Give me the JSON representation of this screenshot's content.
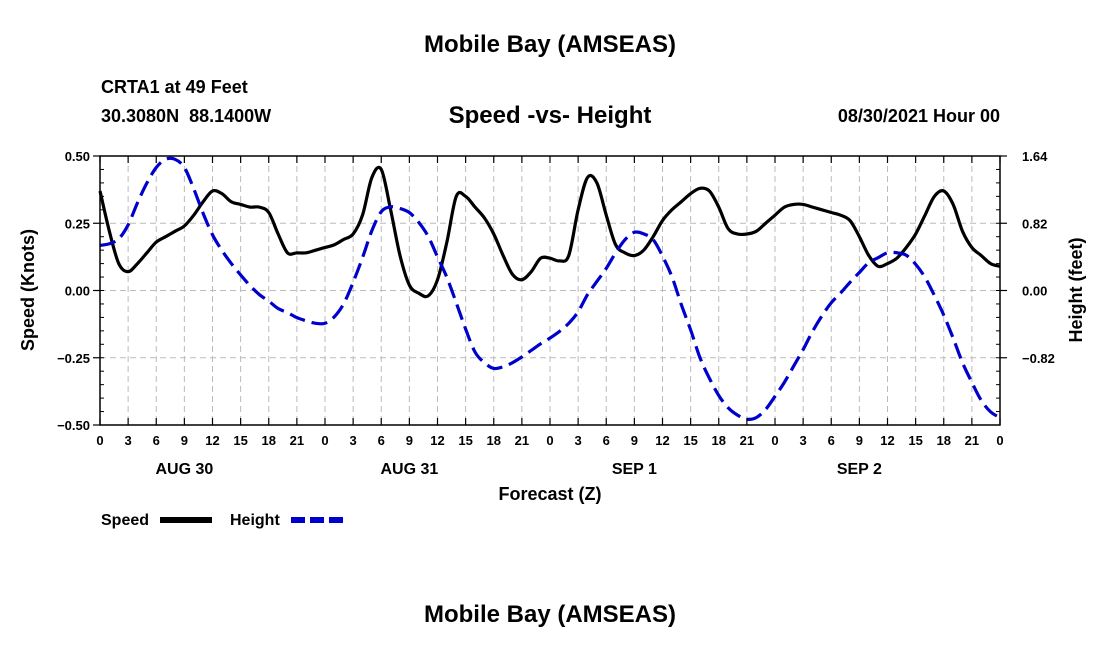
{
  "header": {
    "title_top": "Mobile Bay (AMSEAS)",
    "title_bottom": "Mobile Bay (AMSEAS)",
    "station": "CRTA1 at 49 Feet",
    "coords": "30.3080N  88.1400W",
    "datetime": "08/30/2021 Hour 00"
  },
  "colors": {
    "speed": "#000000",
    "height": "#0000cc",
    "grid": "#bbbbbb"
  },
  "chart_data": {
    "type": "line",
    "title": "Speed -vs- Height",
    "xlabel": "Forecast (Z)",
    "ylabel_left": "Speed (Knots)",
    "ylabel_right": "Height (feet)",
    "xlim": [
      0,
      96
    ],
    "ylim_left": [
      -0.5,
      0.5
    ],
    "ylim_right": [
      -1.64,
      1.64
    ],
    "x_tick_labels": [
      "0",
      "3",
      "6",
      "9",
      "12",
      "15",
      "18",
      "21",
      "0",
      "3",
      "6",
      "9",
      "12",
      "15",
      "18",
      "21",
      "0",
      "3",
      "6",
      "9",
      "12",
      "15",
      "18",
      "21",
      "0",
      "3",
      "6",
      "9",
      "12",
      "15",
      "18",
      "21",
      "0"
    ],
    "left_tick_labels": [
      "0.50",
      "0.25",
      "0.00",
      "−0.25",
      "−0.50"
    ],
    "left_tick_values": [
      0.5,
      0.25,
      0,
      -0.25,
      -0.5
    ],
    "right_tick_labels": [
      "1.64",
      "0.82",
      "0.00",
      "−0.82"
    ],
    "right_tick_values": [
      1.64,
      0.82,
      0,
      -0.82
    ],
    "day_labels": [
      {
        "label": "AUG 30",
        "hour": 9
      },
      {
        "label": "AUG 31",
        "hour": 33
      },
      {
        "label": "SEP 1",
        "hour": 57
      },
      {
        "label": "SEP 2",
        "hour": 81
      }
    ],
    "grid": true,
    "legend_position": "bottom-left",
    "series": [
      {
        "name": "Speed",
        "axis": "left",
        "style": "solid",
        "x": [
          0,
          1,
          2,
          3,
          4,
          5,
          6,
          7,
          8,
          9,
          10,
          11,
          12,
          13,
          14,
          15,
          16,
          17,
          18,
          19,
          20,
          21,
          22,
          23,
          24,
          25,
          26,
          27,
          28,
          29,
          30,
          31,
          32,
          33,
          34,
          35,
          36,
          37,
          38,
          39,
          40,
          41,
          42,
          43,
          44,
          45,
          46,
          47,
          48,
          49,
          50,
          51,
          52,
          53,
          54,
          55,
          56,
          57,
          58,
          59,
          60,
          61,
          62,
          63,
          64,
          65,
          66,
          67,
          68,
          69,
          70,
          71,
          72,
          73,
          74,
          75,
          76,
          77,
          78,
          79,
          80,
          81,
          82,
          83,
          84,
          85,
          86,
          87,
          88,
          89,
          90,
          91,
          92,
          93,
          94,
          95,
          96
        ],
        "values": [
          0.37,
          0.22,
          0.1,
          0.07,
          0.1,
          0.14,
          0.18,
          0.2,
          0.22,
          0.24,
          0.28,
          0.33,
          0.37,
          0.36,
          0.33,
          0.32,
          0.31,
          0.31,
          0.29,
          0.21,
          0.14,
          0.14,
          0.14,
          0.15,
          0.16,
          0.17,
          0.19,
          0.21,
          0.28,
          0.42,
          0.45,
          0.3,
          0.13,
          0.02,
          -0.01,
          -0.02,
          0.04,
          0.18,
          0.35,
          0.35,
          0.31,
          0.27,
          0.21,
          0.13,
          0.06,
          0.04,
          0.07,
          0.12,
          0.12,
          0.11,
          0.13,
          0.3,
          0.42,
          0.4,
          0.28,
          0.17,
          0.14,
          0.13,
          0.15,
          0.2,
          0.26,
          0.3,
          0.33,
          0.36,
          0.38,
          0.37,
          0.31,
          0.23,
          0.21,
          0.21,
          0.22,
          0.25,
          0.28,
          0.31,
          0.32,
          0.32,
          0.31,
          0.3,
          0.29,
          0.28,
          0.26,
          0.2,
          0.13,
          0.09,
          0.1,
          0.12,
          0.16,
          0.21,
          0.28,
          0.35,
          0.37,
          0.32,
          0.22,
          0.16,
          0.13,
          0.1,
          0.09
        ]
      },
      {
        "name": "Height",
        "axis": "right",
        "style": "dashed",
        "x": [
          0,
          1,
          2,
          3,
          4,
          5,
          6,
          7,
          8,
          9,
          10,
          11,
          12,
          13,
          14,
          15,
          16,
          17,
          18,
          19,
          20,
          21,
          22,
          23,
          24,
          25,
          26,
          27,
          28,
          29,
          30,
          31,
          32,
          33,
          34,
          35,
          36,
          37,
          38,
          39,
          40,
          41,
          42,
          43,
          44,
          45,
          46,
          47,
          48,
          49,
          50,
          51,
          52,
          53,
          54,
          55,
          56,
          57,
          58,
          59,
          60,
          61,
          62,
          63,
          64,
          65,
          66,
          67,
          68,
          69,
          70,
          71,
          72,
          73,
          74,
          75,
          76,
          77,
          78,
          79,
          80,
          81,
          82,
          83,
          84,
          85,
          86,
          87,
          88,
          89,
          90,
          91,
          92,
          93,
          94,
          95,
          96
        ],
        "values": [
          0.55,
          0.57,
          0.63,
          0.8,
          1.07,
          1.31,
          1.5,
          1.6,
          1.6,
          1.5,
          1.24,
          0.94,
          0.68,
          0.49,
          0.33,
          0.19,
          0.06,
          -0.05,
          -0.13,
          -0.22,
          -0.27,
          -0.33,
          -0.37,
          -0.4,
          -0.4,
          -0.32,
          -0.16,
          0.1,
          0.4,
          0.73,
          0.96,
          1.02,
          1.0,
          0.95,
          0.83,
          0.66,
          0.41,
          0.16,
          -0.15,
          -0.47,
          -0.75,
          -0.88,
          -0.95,
          -0.93,
          -0.88,
          -0.81,
          -0.73,
          -0.65,
          -0.58,
          -0.5,
          -0.4,
          -0.26,
          -0.05,
          0.11,
          0.27,
          0.46,
          0.62,
          0.71,
          0.69,
          0.62,
          0.42,
          0.17,
          -0.17,
          -0.48,
          -0.82,
          -1.07,
          -1.28,
          -1.43,
          -1.52,
          -1.57,
          -1.55,
          -1.45,
          -1.29,
          -1.12,
          -0.92,
          -0.72,
          -0.5,
          -0.31,
          -0.15,
          -0.03,
          0.1,
          0.22,
          0.34,
          0.4,
          0.46,
          0.46,
          0.43,
          0.32,
          0.16,
          -0.06,
          -0.3,
          -0.58,
          -0.88,
          -1.12,
          -1.34,
          -1.48,
          -1.55
        ]
      }
    ]
  }
}
